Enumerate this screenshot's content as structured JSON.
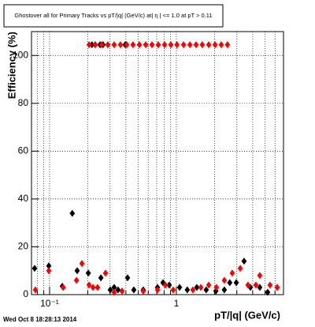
{
  "chart_data": {
    "type": "scatter",
    "title": "Ghostover all for Primary Tracks vs pT/|q| (GeV/c) at|  η | <= 1.0 at pT > 0.11",
    "x_label": "pT/|q| (GeV/c)",
    "y_label": "Efficiency (%)",
    "timestamp": "Wed Oct  8 18:28:13 2014",
    "log_x": true,
    "grid": true,
    "xlim": [
      0.072,
      7.0
    ],
    "ylim": [
      0,
      110
    ],
    "xticks": [
      {
        "value": 0.1,
        "label": "10⁻¹"
      },
      1
    ],
    "xminor": [
      0.08,
      0.09,
      0.2,
      0.3,
      0.4,
      0.5,
      0.6,
      0.7,
      0.8,
      0.9,
      2,
      3,
      4,
      5,
      6,
      7
    ],
    "yticks": [
      0,
      20,
      40,
      60,
      80,
      100
    ],
    "series": [
      {
        "color": "#000000",
        "x": [
          0.0762,
          0.0986,
          0.126,
          0.151,
          0.165,
          0.202,
          0.254,
          0.301,
          0.323,
          0.347,
          0.412,
          0.462,
          0.548,
          0.71,
          0.784,
          0.879,
          1.06,
          1.22,
          1.45,
          1.72,
          2.05,
          2.39,
          2.64,
          2.97,
          3.42,
          3.84,
          4.55,
          5.25,
          6.24,
          0.216,
          0.229,
          0.25,
          0.264,
          0.395
        ],
        "values": [
          11,
          12,
          3.5,
          34,
          10,
          9,
          7,
          2,
          3,
          2,
          7,
          2,
          2,
          3,
          5,
          4,
          3,
          2,
          3,
          2,
          1.5,
          2,
          5,
          5,
          14,
          3,
          3,
          1,
          3,
          104.5,
          104.5,
          104.5,
          104.5,
          104.5
        ]
      },
      {
        "color": "#ff0000",
        "x": [
          0.0773,
          0.0986,
          0.128,
          0.163,
          0.18,
          0.205,
          0.22,
          0.239,
          0.276,
          0.323,
          0.373,
          0.548,
          0.71,
          0.819,
          0.944,
          1.35,
          1.56,
          1.8,
          2.07,
          2.39,
          2.76,
          3.19,
          3.67,
          4.24,
          4.55,
          5.48,
          6.24,
          0.205,
          0.229,
          0.257,
          0.288,
          0.323,
          0.362,
          0.406,
          0.455,
          0.511,
          0.573,
          0.642,
          0.72,
          0.807,
          0.905,
          1.01,
          1.14,
          1.28,
          1.43,
          1.6,
          1.8,
          2.02,
          2.26,
          2.53
        ],
        "values": [
          2,
          10,
          3,
          6,
          13,
          4,
          3,
          3,
          9,
          1,
          1.5,
          1.5,
          2,
          4,
          2,
          2,
          3,
          4,
          3,
          6,
          9,
          11,
          4,
          4,
          8,
          4,
          3,
          104.5,
          104.5,
          104.5,
          104.5,
          104.5,
          104.5,
          104.5,
          104.5,
          104.5,
          104.5,
          104.5,
          104.5,
          104.5,
          104.5,
          104.5,
          104.5,
          104.5,
          104.5,
          104.5,
          104.5,
          104.5,
          104.5,
          104.5
        ]
      }
    ]
  }
}
